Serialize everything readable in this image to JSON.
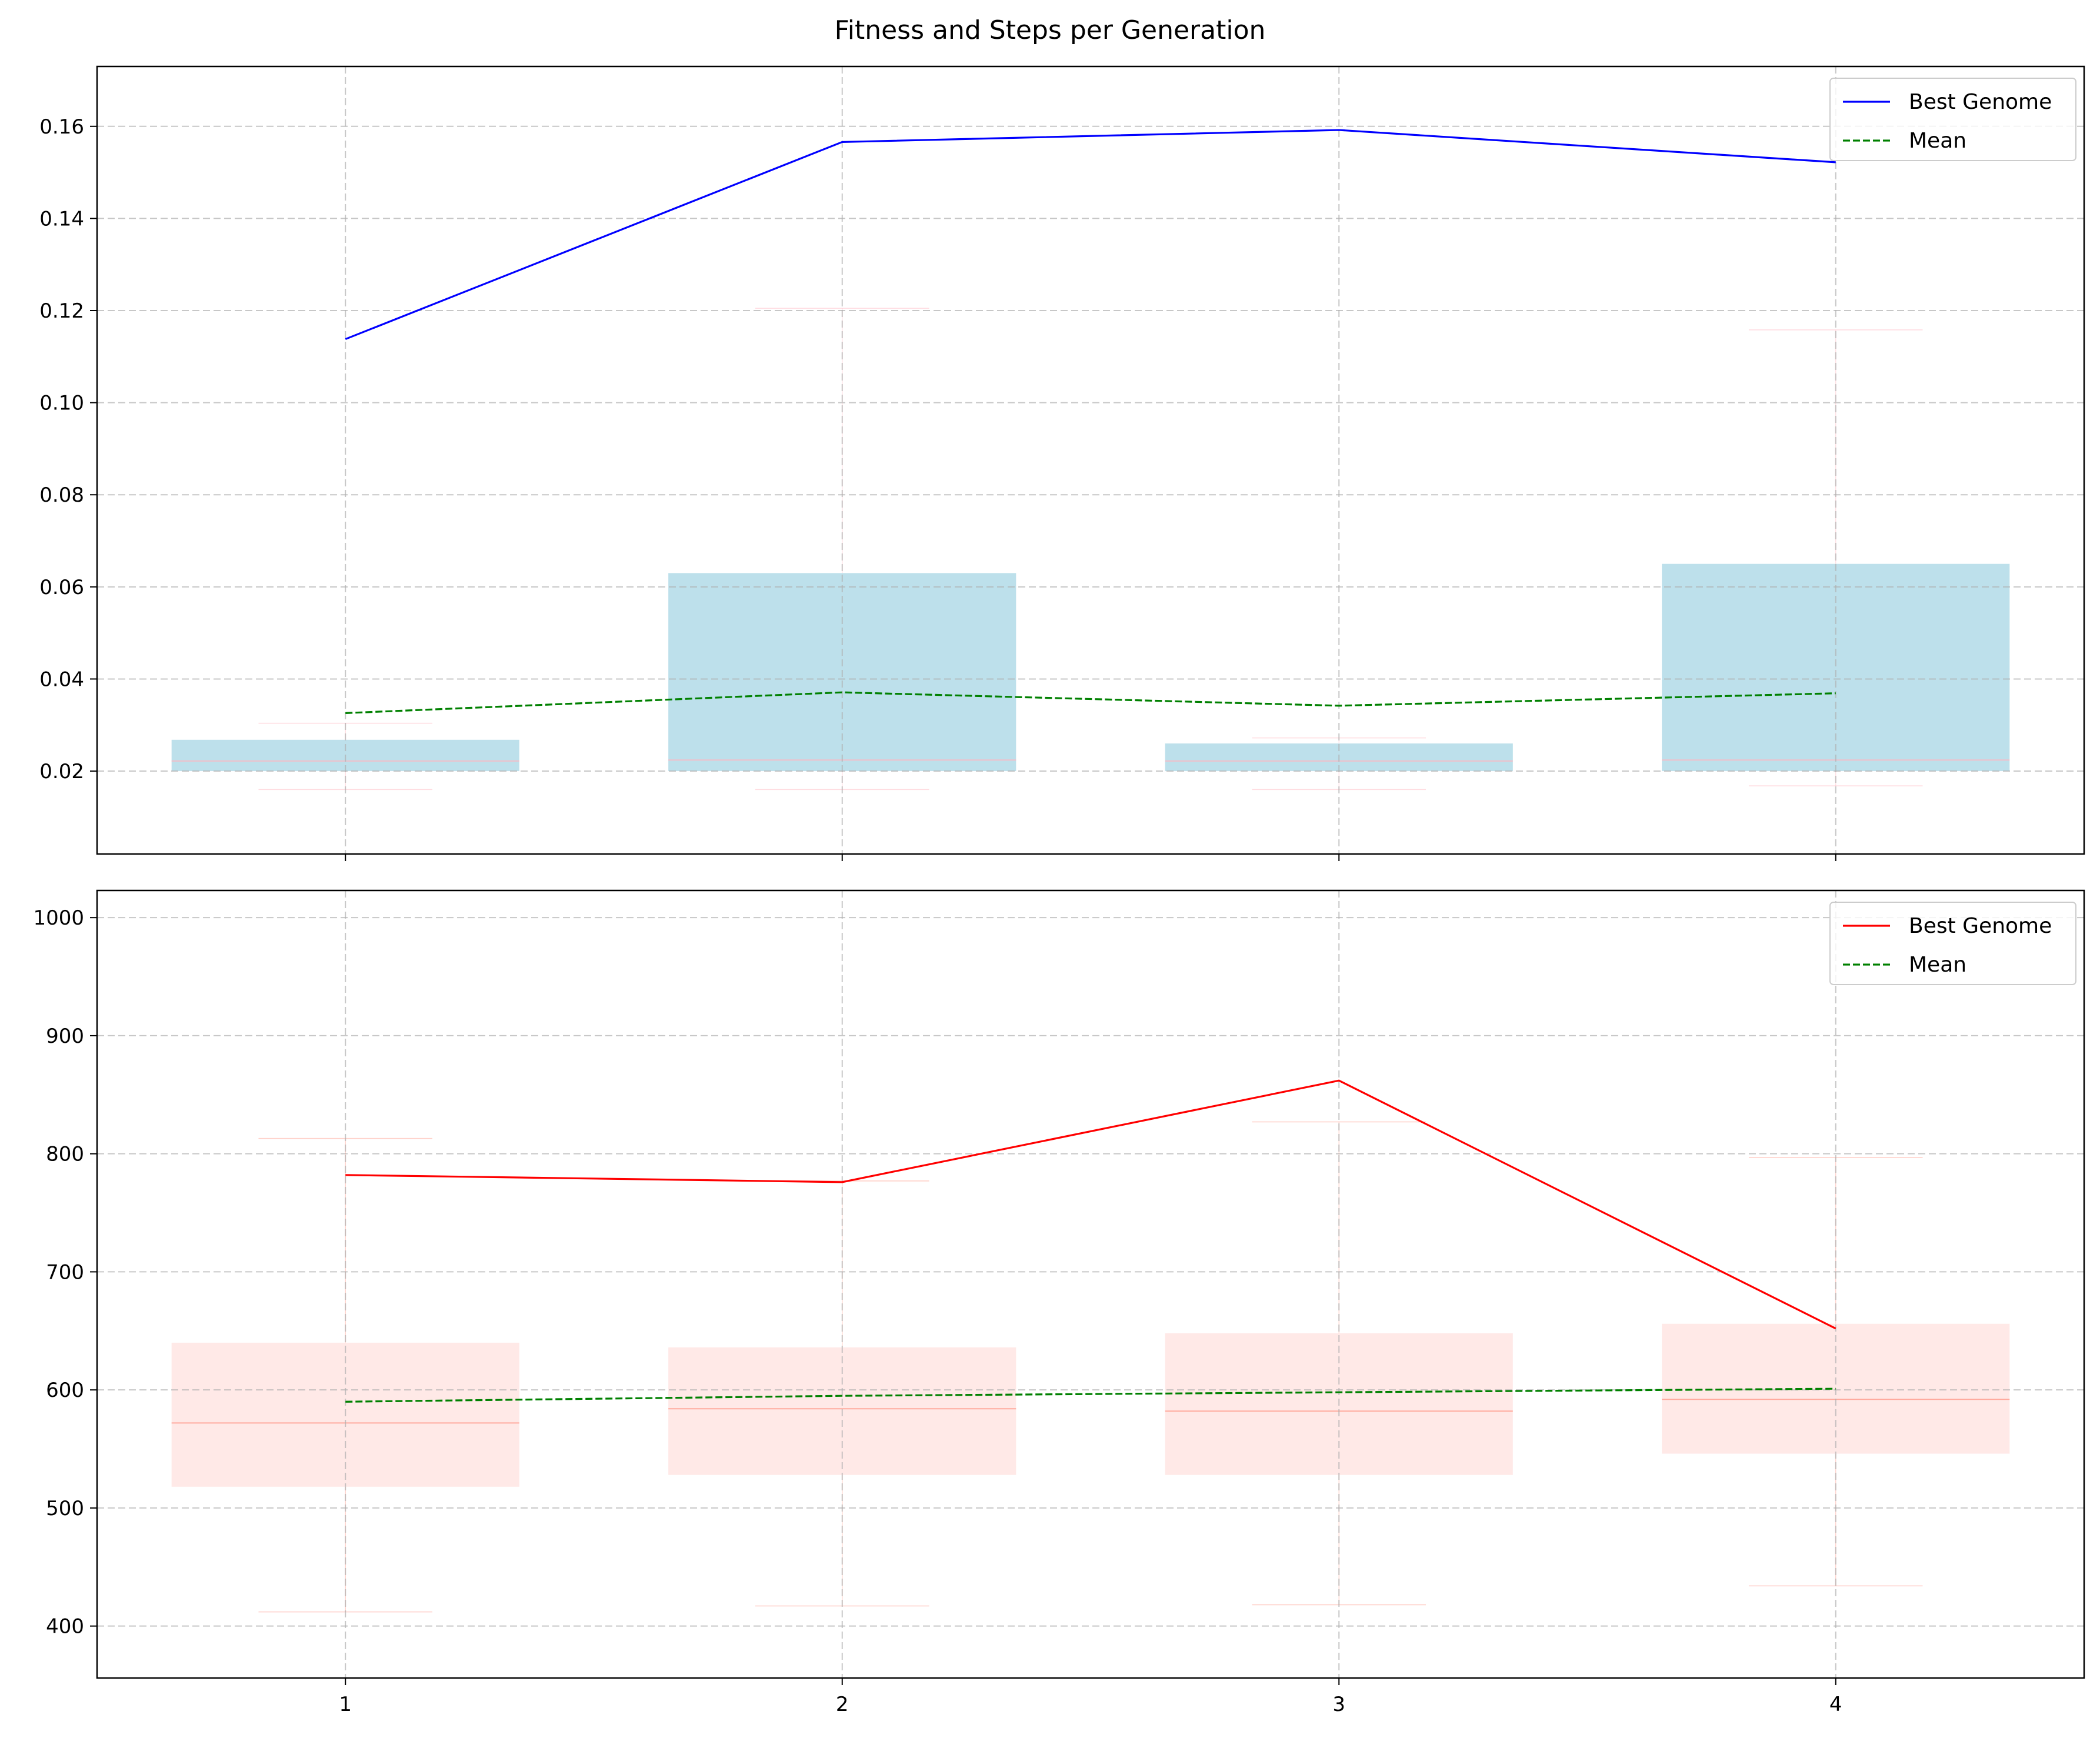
{
  "figure": {
    "title": "Fitness and Steps per Generation"
  },
  "chart_data": [
    {
      "type": "line",
      "panel": "top",
      "categories": [
        1,
        2,
        3,
        4
      ],
      "x": [
        1,
        2,
        3,
        4
      ],
      "ylim": [
        0.002,
        0.173
      ],
      "yticks": [
        0.02,
        0.04,
        0.06,
        0.08,
        0.1,
        0.12,
        0.14,
        0.16
      ],
      "ytick_labels": [
        "0.02",
        "0.04",
        "0.06",
        "0.08",
        "0.10",
        "0.12",
        "0.14",
        "0.16"
      ],
      "xticks": [
        1,
        2,
        3,
        4
      ],
      "xtick_labels": [
        "",
        "",
        "",
        ""
      ],
      "grid": true,
      "legend": "top-right",
      "series": [
        {
          "name": "Best Genome",
          "style": "solid",
          "color": "#0000ff",
          "values": [
            0.1138,
            0.1566,
            0.1592,
            0.1522
          ]
        },
        {
          "name": "Mean",
          "style": "dashed",
          "color": "#008000",
          "values": [
            0.0326,
            0.0371,
            0.0342,
            0.0369
          ]
        }
      ],
      "boxes": {
        "color": "#add8e6",
        "median_color": "#ffb6c1",
        "items": [
          {
            "x": 1,
            "q1": 0.02,
            "median": 0.0222,
            "q3": 0.0268,
            "whisker_low": 0.016,
            "whisker_high": 0.0304
          },
          {
            "x": 2,
            "q1": 0.02,
            "median": 0.0224,
            "q3": 0.063,
            "whisker_low": 0.016,
            "whisker_high": 0.1205
          },
          {
            "x": 3,
            "q1": 0.02,
            "median": 0.0222,
            "q3": 0.026,
            "whisker_low": 0.016,
            "whisker_high": 0.0272
          },
          {
            "x": 4,
            "q1": 0.02,
            "median": 0.0224,
            "q3": 0.065,
            "whisker_low": 0.0168,
            "whisker_high": 0.1158
          }
        ]
      }
    },
    {
      "type": "line",
      "panel": "bottom",
      "categories": [
        1,
        2,
        3,
        4
      ],
      "x": [
        1,
        2,
        3,
        4
      ],
      "ylim": [
        356,
        1023
      ],
      "yticks": [
        400,
        500,
        600,
        700,
        800,
        900,
        1000
      ],
      "ytick_labels": [
        "400",
        "500",
        "600",
        "700",
        "800",
        "900",
        "1000"
      ],
      "xticks": [
        1,
        2,
        3,
        4
      ],
      "xtick_labels": [
        "1",
        "2",
        "3",
        "4"
      ],
      "grid": true,
      "legend": "top-right",
      "series": [
        {
          "name": "Best Genome",
          "style": "solid",
          "color": "#ff0000",
          "values": [
            782,
            776,
            862,
            652
          ]
        },
        {
          "name": "Mean",
          "style": "dashed",
          "color": "#008000",
          "values": [
            590,
            595,
            598,
            601
          ]
        }
      ],
      "boxes": {
        "color": "#ffe4e1",
        "median_color": "#ff9c8c",
        "items": [
          {
            "x": 1,
            "q1": 518,
            "median": 572,
            "q3": 640,
            "whisker_low": 412,
            "whisker_high": 813
          },
          {
            "x": 2,
            "q1": 528,
            "median": 584,
            "q3": 636,
            "whisker_low": 417,
            "whisker_high": 777
          },
          {
            "x": 3,
            "q1": 528,
            "median": 582,
            "q3": 648,
            "whisker_low": 418,
            "whisker_high": 827
          },
          {
            "x": 4,
            "q1": 546,
            "median": 592,
            "q3": 656,
            "whisker_low": 434,
            "whisker_high": 797
          }
        ]
      }
    }
  ]
}
